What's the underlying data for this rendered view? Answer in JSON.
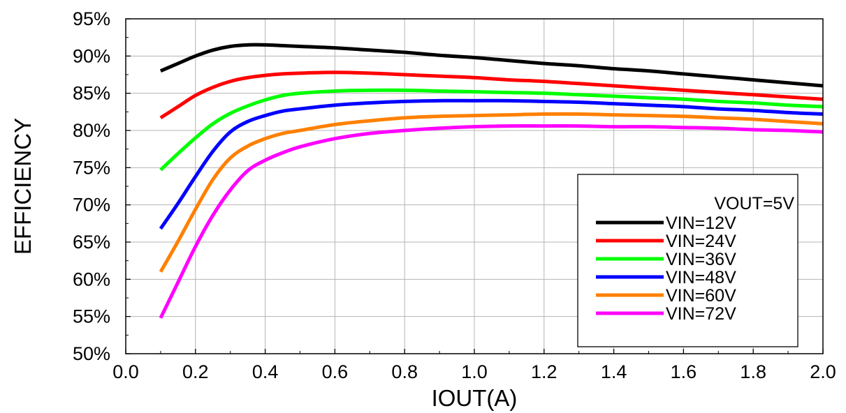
{
  "chart_data": {
    "type": "line",
    "title": "",
    "xlabel": "IOUT(A)",
    "ylabel": "EFFICIENCY",
    "xlim": [
      0,
      2.0
    ],
    "ylim": [
      50,
      95
    ],
    "x_ticks": [
      "0.0",
      "0.2",
      "0.4",
      "0.6",
      "0.8",
      "1.0",
      "1.2",
      "1.4",
      "1.6",
      "1.8",
      "2.0"
    ],
    "y_ticks": [
      "50%",
      "55%",
      "60%",
      "65%",
      "70%",
      "75%",
      "80%",
      "85%",
      "90%",
      "95%"
    ],
    "grid": true,
    "legend_title": "VOUT=5V",
    "legend_position": "bottom-right",
    "x": [
      0.1,
      0.15,
      0.2,
      0.25,
      0.3,
      0.35,
      0.4,
      0.45,
      0.5,
      0.6,
      0.7,
      0.8,
      0.9,
      1.0,
      1.1,
      1.2,
      1.3,
      1.4,
      1.5,
      1.6,
      1.7,
      1.8,
      1.9,
      2.0
    ],
    "series": [
      {
        "name": "VIN=12V",
        "color": "#000000",
        "values": [
          88.0,
          89.0,
          90.0,
          90.8,
          91.3,
          91.5,
          91.5,
          91.4,
          91.3,
          91.1,
          90.8,
          90.5,
          90.1,
          89.8,
          89.4,
          89.0,
          88.7,
          88.3,
          88.0,
          87.6,
          87.2,
          86.8,
          86.4,
          86.0
        ]
      },
      {
        "name": "VIN=24V",
        "color": "#ff0000",
        "values": [
          81.7,
          83.2,
          84.7,
          85.8,
          86.6,
          87.1,
          87.4,
          87.6,
          87.7,
          87.8,
          87.7,
          87.5,
          87.3,
          87.1,
          86.8,
          86.6,
          86.3,
          86.0,
          85.7,
          85.4,
          85.1,
          84.8,
          84.5,
          84.2
        ]
      },
      {
        "name": "VIN=36V",
        "color": "#00ff00",
        "values": [
          74.7,
          76.9,
          79.0,
          80.9,
          82.3,
          83.3,
          84.1,
          84.7,
          85.0,
          85.3,
          85.4,
          85.4,
          85.3,
          85.2,
          85.1,
          85.0,
          84.8,
          84.6,
          84.4,
          84.2,
          83.9,
          83.7,
          83.4,
          83.2
        ]
      },
      {
        "name": "VIN=48V",
        "color": "#0000ff",
        "values": [
          66.8,
          70.2,
          73.8,
          77.2,
          79.8,
          81.2,
          82.0,
          82.6,
          82.9,
          83.4,
          83.7,
          83.9,
          84.0,
          84.0,
          84.0,
          83.9,
          83.8,
          83.6,
          83.4,
          83.2,
          82.9,
          82.7,
          82.4,
          82.2
        ]
      },
      {
        "name": "VIN=60V",
        "color": "#ff8000",
        "values": [
          61.0,
          65.1,
          69.4,
          73.4,
          76.3,
          77.9,
          78.9,
          79.6,
          80.0,
          80.8,
          81.3,
          81.7,
          81.9,
          82.0,
          82.1,
          82.2,
          82.2,
          82.1,
          82.0,
          81.9,
          81.7,
          81.5,
          81.2,
          80.9
        ]
      },
      {
        "name": "VIN=72V",
        "color": "#ff00ff",
        "values": [
          54.8,
          59.6,
          64.4,
          68.6,
          72.0,
          74.6,
          76.0,
          77.0,
          77.8,
          78.9,
          79.6,
          80.0,
          80.3,
          80.5,
          80.6,
          80.6,
          80.6,
          80.5,
          80.5,
          80.4,
          80.3,
          80.1,
          80.0,
          79.8
        ]
      }
    ]
  }
}
